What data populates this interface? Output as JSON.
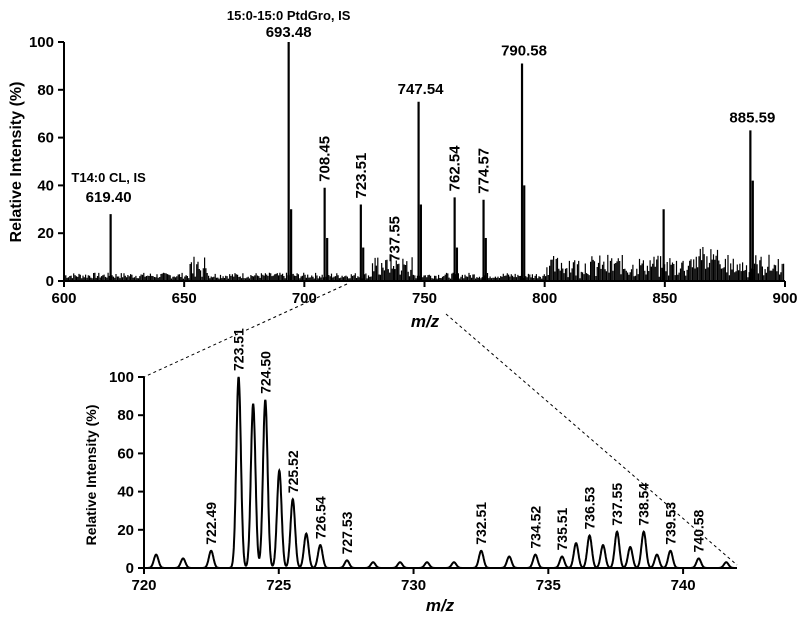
{
  "chart_data": [
    {
      "type": "line",
      "xlabel": "m/z",
      "ylabel": "Relative Intensity (%)",
      "xlim": [
        600,
        900
      ],
      "ylim": [
        0,
        100
      ],
      "xticks": [
        "600",
        "650",
        "700",
        "750",
        "800",
        "850",
        "900"
      ],
      "yticks": [
        "0",
        "20",
        "40",
        "60",
        "80",
        "100"
      ],
      "x": [
        619.4,
        693.48,
        694.5,
        708.45,
        709.5,
        723.51,
        724.5,
        737.55,
        747.54,
        748.5,
        762.54,
        763.5,
        774.57,
        775.5,
        790.58,
        791.5,
        849.5,
        885.59,
        886.6
      ],
      "y": [
        28,
        100,
        30,
        39,
        18,
        32,
        14,
        5,
        75,
        32,
        35,
        14,
        34,
        18,
        91,
        40,
        30,
        63,
        42
      ],
      "annotations": [
        {
          "text": "T14:0 CL, IS",
          "x": 619.4
        },
        {
          "text": "619.40",
          "x": 619.4
        },
        {
          "text": "15:0-15:0 PtdGro, IS",
          "x": 693.48
        },
        {
          "text": "693.48",
          "x": 693.48
        },
        {
          "text": "708.45",
          "x": 708.45
        },
        {
          "text": "723.51",
          "x": 723.51
        },
        {
          "text": "737.55",
          "x": 737.55
        },
        {
          "text": "747.54",
          "x": 747.54
        },
        {
          "text": "762.54",
          "x": 762.54
        },
        {
          "text": "774.57",
          "x": 774.57
        },
        {
          "text": "790.58",
          "x": 790.58
        },
        {
          "text": "885.59",
          "x": 885.59
        }
      ]
    },
    {
      "type": "line",
      "xlabel": "m/z",
      "ylabel": "Relative Intensity (%)",
      "xlim": [
        720,
        742
      ],
      "ylim": [
        0,
        100
      ],
      "xticks": [
        "720",
        "725",
        "730",
        "735",
        "740"
      ],
      "yticks": [
        "0",
        "20",
        "40",
        "60",
        "80",
        "100"
      ],
      "x": [
        720.45,
        721.45,
        722.49,
        723.51,
        724.05,
        724.5,
        725.02,
        725.52,
        726.02,
        726.54,
        727.53,
        728.5,
        729.5,
        730.5,
        731.5,
        732.51,
        733.55,
        734.52,
        735.51,
        736.03,
        736.53,
        737.03,
        737.55,
        738.04,
        738.54,
        739.03,
        739.53,
        740.58,
        741.6
      ],
      "y": [
        7,
        5,
        9,
        100,
        86,
        88,
        51,
        36,
        18,
        12,
        4,
        3,
        3,
        3,
        3,
        9,
        6,
        7,
        6,
        13,
        17,
        12,
        19,
        11,
        19,
        7,
        9,
        5,
        3
      ],
      "annotations": [
        "722.49",
        "723.51",
        "724.50",
        "725.52",
        "726.54",
        "727.53",
        "732.51",
        "734.52",
        "735.51",
        "736.53",
        "737.55",
        "738.54",
        "739.53",
        "740.58"
      ]
    }
  ]
}
